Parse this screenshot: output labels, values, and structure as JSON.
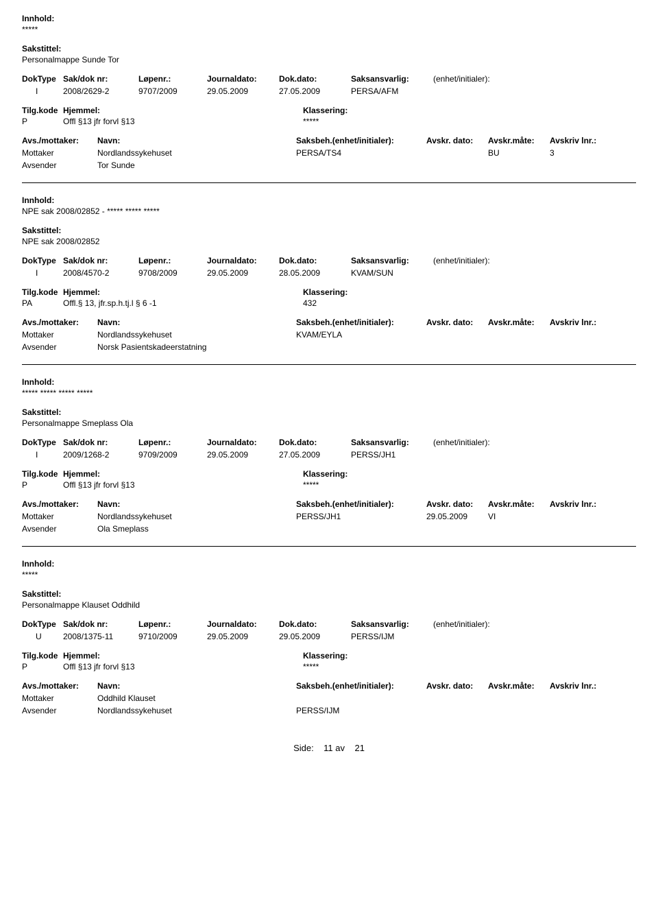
{
  "labels": {
    "innhold": "Innhold:",
    "sakstittel": "Sakstittel:",
    "doktype": "DokType",
    "sakdok": "Sak/dok nr:",
    "lopenr": "Løpenr.:",
    "journaldato": "Journaldato:",
    "dokdato": "Dok.dato:",
    "saksansvarlig": "Saksansvarlig:",
    "enhet": "(enhet/initialer):",
    "tilgkode": "Tilg.kode",
    "hjemmel": "Hjemmel:",
    "klassering": "Klassering:",
    "avsmottaker": "Avs./mottaker:",
    "navn": "Navn:",
    "saksbeh": "Saksbeh.(enhet/initialer):",
    "avskrdato": "Avskr. dato:",
    "avskrmate": "Avskr.måte:",
    "avskrivlnr": "Avskriv lnr.:",
    "mottaker": "Mottaker",
    "avsender": "Avsender"
  },
  "footer": {
    "side_label": "Side:",
    "page": "11",
    "av": "av",
    "total": "21"
  },
  "records": [
    {
      "innhold": "*****",
      "sakstittel": "Personalmappe Sunde Tor",
      "doktype": "I",
      "sakdok": "2008/2629-2",
      "lopenr": "9707/2009",
      "journaldato": "29.05.2009",
      "dokdato": "27.05.2009",
      "saksansvarlig": "PERSA/AFM",
      "tilgcode": "P",
      "hjemmel": "Offl §13 jfr forvl §13",
      "klassering": "*****",
      "parties": [
        {
          "role": "Mottaker",
          "name": "Nordlandssykehuset",
          "saksbeh": "PERSA/TS4",
          "avskrdato": "",
          "avskrmate": "BU",
          "avskrivlnr": "3"
        },
        {
          "role": "Avsender",
          "name": "Tor Sunde",
          "saksbeh": "",
          "avskrdato": "",
          "avskrmate": "",
          "avskrivlnr": ""
        }
      ]
    },
    {
      "innhold": "NPE sak 2008/02852 - ***** ***** *****",
      "sakstittel": "NPE sak 2008/02852",
      "doktype": "I",
      "sakdok": "2008/4570-2",
      "lopenr": "9708/2009",
      "journaldato": "29.05.2009",
      "dokdato": "28.05.2009",
      "saksansvarlig": "KVAM/SUN",
      "tilgcode": "PA",
      "hjemmel": "Offl.§ 13, jfr.sp.h.tj.l § 6 -1",
      "klassering": "432",
      "parties": [
        {
          "role": "Mottaker",
          "name": "Nordlandssykehuset",
          "saksbeh": "KVAM/EYLA",
          "avskrdato": "",
          "avskrmate": "",
          "avskrivlnr": ""
        },
        {
          "role": "Avsender",
          "name": "Norsk Pasientskadeerstatning",
          "saksbeh": "",
          "avskrdato": "",
          "avskrmate": "",
          "avskrivlnr": ""
        }
      ]
    },
    {
      "innhold": "***** ***** ***** *****",
      "sakstittel": "Personalmappe Smeplass Ola",
      "doktype": "I",
      "sakdok": "2009/1268-2",
      "lopenr": "9709/2009",
      "journaldato": "29.05.2009",
      "dokdato": "27.05.2009",
      "saksansvarlig": "PERSS/JH1",
      "tilgcode": "P",
      "hjemmel": "Offl §13 jfr forvl §13",
      "klassering": "*****",
      "parties": [
        {
          "role": "Mottaker",
          "name": "Nordlandssykehuset",
          "saksbeh": "PERSS/JH1",
          "avskrdato": "29.05.2009",
          "avskrmate": "VI",
          "avskrivlnr": ""
        },
        {
          "role": "Avsender",
          "name": "Ola Smeplass",
          "saksbeh": "",
          "avskrdato": "",
          "avskrmate": "",
          "avskrivlnr": ""
        }
      ]
    },
    {
      "innhold": "*****",
      "sakstittel": "Personalmappe Klauset Oddhild",
      "doktype": "U",
      "sakdok": "2008/1375-11",
      "lopenr": "9710/2009",
      "journaldato": "29.05.2009",
      "dokdato": "29.05.2009",
      "saksansvarlig": "PERSS/IJM",
      "tilgcode": "P",
      "hjemmel": "Offl §13 jfr forvl §13",
      "klassering": "*****",
      "parties": [
        {
          "role": "Mottaker",
          "name": "Oddhild Klauset",
          "saksbeh": "",
          "avskrdato": "",
          "avskrmate": "",
          "avskrivlnr": ""
        },
        {
          "role": "Avsender",
          "name": "Nordlandssykehuset",
          "saksbeh": "PERSS/IJM",
          "avskrdato": "",
          "avskrmate": "",
          "avskrivlnr": ""
        }
      ]
    }
  ]
}
